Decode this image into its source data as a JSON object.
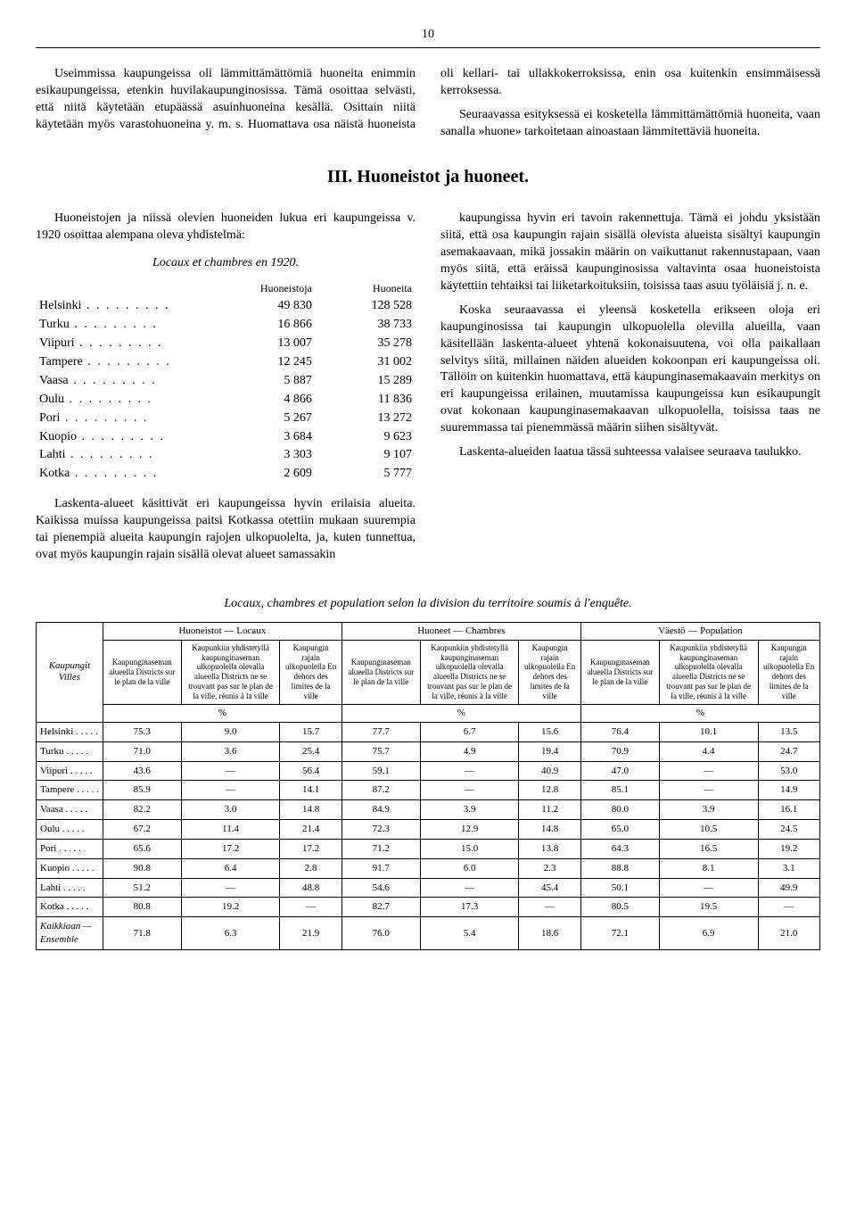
{
  "page_number": "10",
  "intro_paragraphs": [
    "Useimmissa kaupungeissa oli lämmittämättömiä huoneita enimmin esikaupungeissa, etenkin huvilakaupunginosissa. Tämä osoittaa selvästi, että niitä käytetään etupäässä asuinhuoneina kesällä. Osittain niitä käytetään myös varastohuoneina y. m. s. Huomattava osa näistä huoneista oli kellari- tai ullakkokerroksissa, enin osa kuitenkin ensimmäisessä kerroksessa.",
    "Seuraavassa esityksessä ei kosketella lämmittämättömiä huoneita, vaan sanalla »huone» tarkoitetaan ainoastaan lämmitettäviä huoneita."
  ],
  "section_title": "III. Huoneistot ja huoneet.",
  "left_intro": "Huoneistojen ja niissä olevien huoneiden lukua eri kaupungeissa v. 1920 osoittaa alempana oleva yhdistelmä:",
  "list_title": "Locaux et chambres en 1920.",
  "list_headers": {
    "col1": "Huoneistoja",
    "col2": "Huoneita"
  },
  "city_data": [
    {
      "city": "Helsinki",
      "a": "49 830",
      "b": "128 528"
    },
    {
      "city": "Turku",
      "a": "16 866",
      "b": "38 733"
    },
    {
      "city": "Viipuri",
      "a": "13 007",
      "b": "35 278"
    },
    {
      "city": "Tampere",
      "a": "12 245",
      "b": "31 002"
    },
    {
      "city": "Vaasa",
      "a": "5 887",
      "b": "15 289"
    },
    {
      "city": "Oulu",
      "a": "4 866",
      "b": "11 836"
    },
    {
      "city": "Pori",
      "a": "5 267",
      "b": "13 272"
    },
    {
      "city": "Kuopio",
      "a": "3 684",
      "b": "9 623"
    },
    {
      "city": "Lahti",
      "a": "3 303",
      "b": "9 107"
    },
    {
      "city": "Kotka",
      "a": "2 609",
      "b": "5 777"
    }
  ],
  "left_para2": "Laskenta-alueet käsittivät eri kaupungeissa hyvin erilaisia alueita. Kaikissa muissa kaupungeissa paitsi Kotkassa otettiin mukaan suurempia tai pienempiä alueita kaupungin rajojen ulkopuolelta, ja, kuten tunnettua, ovat myös kaupungin rajain sisällä olevat alueet samassakin",
  "right_paras": [
    "kaupungissa hyvin eri tavoin rakennettuja. Tämä ei johdu yksistään siitä, että osa kaupungin rajain sisällä olevista alueista sisältyi kaupungin asemakaavaan, mikä jossakin määrin on vaikuttanut rakennustapaan, vaan myös siitä, että eräissä kaupunginosissa valtavinta osaa huoneistoista käytettiin tehtaiksi tai liiketarkoituksiin, toisissa taas asuu työläisiä j. n. e.",
    "Koska seuraavassa ei yleensä kosketella erikseen oloja eri kaupunginosissa tai kaupungin ulkopuolella olevilla alueilla, vaan käsitellään laskenta-alueet yhtenä kokonaisuutena, voi olla paikallaan selvitys siitä, millainen näiden alueiden kokoonpan eri kaupungeissa oli. Tällöin on kuitenkin huomattava, että kaupunginasemakaavain merkitys on eri kaupungeissa erilainen, muutamissa kaupungeissa kun esikaupungit ovat kokonaan kaupunginasemakaavan ulkopuolella, toisissa taas ne suuremmassa tai pienemmässä määrin siihen sisältyvät.",
    "Laskenta-alueiden laatua tässä suhteessa valaisee seuraava taulukko."
  ],
  "table_title": "Locaux, chambres et population selon la division du territoire soumis à l'enquête.",
  "table": {
    "row_label_header": "Kaupungit\nVilles",
    "groups": [
      "Huoneistot — Locaux",
      "Huoneet — Chambres",
      "Väestö — Population"
    ],
    "sub_headers": [
      "Kaupunginaseman alueella Districts sur le plan de la ville",
      "Kaupunkiin yhdistetyllä kaupunginaseman ulkopuolella olevalla alueella Districts ne se trouvant pas sur le plan de la ville, réunis à la ville",
      "Kaupungin rajain ulkopuolella En dehors des limites de la ville"
    ],
    "pct_label": "%",
    "rows": [
      {
        "city": "Helsinki",
        "v": [
          "75.3",
          "9.0",
          "15.7",
          "77.7",
          "6.7",
          "15.6",
          "76.4",
          "10.1",
          "13.5"
        ]
      },
      {
        "city": "Turku",
        "v": [
          "71.0",
          "3.6",
          "25.4",
          "75.7",
          "4.9",
          "19.4",
          "70.9",
          "4.4",
          "24.7"
        ]
      },
      {
        "city": "Viipuri",
        "v": [
          "43.6",
          "—",
          "56.4",
          "59.1",
          "—",
          "40.9",
          "47.0",
          "—",
          "53.0"
        ]
      },
      {
        "city": "Tampere",
        "v": [
          "85.9",
          "—",
          "14.1",
          "87.2",
          "—",
          "12.8",
          "85.1",
          "—",
          "14.9"
        ]
      },
      {
        "city": "Vaasa",
        "v": [
          "82.2",
          "3.0",
          "14.8",
          "84.9",
          "3.9",
          "11.2",
          "80.0",
          "3.9",
          "16.1"
        ]
      },
      {
        "city": "Oulu",
        "v": [
          "67.2",
          "11.4",
          "21.4",
          "72.3",
          "12.9",
          "14.8",
          "65.0",
          "10.5",
          "24.5"
        ]
      },
      {
        "city": "Pori",
        "v": [
          "65.6",
          "17.2",
          "17.2",
          "71.2",
          "15.0",
          "13.8",
          "64.3",
          "16.5",
          "19.2"
        ]
      },
      {
        "city": "Kuopio",
        "v": [
          "90.8",
          "6.4",
          "2.8",
          "91.7",
          "6.0",
          "2.3",
          "88.8",
          "8.1",
          "3.1"
        ]
      },
      {
        "city": "Lahti",
        "v": [
          "51.2",
          "—",
          "48.8",
          "54.6",
          "—",
          "45.4",
          "50.1",
          "—",
          "49.9"
        ]
      },
      {
        "city": "Kotka",
        "v": [
          "80.8",
          "19.2",
          "—",
          "82.7",
          "17.3",
          "—",
          "80.5",
          "19.5",
          "—"
        ]
      }
    ],
    "total_label": "Kaikkiaan —\nEnsemble",
    "total": [
      "71.8",
      "6.3",
      "21.9",
      "76.0",
      "5.4",
      "18.6",
      "72.1",
      "6.9",
      "21.0"
    ]
  }
}
